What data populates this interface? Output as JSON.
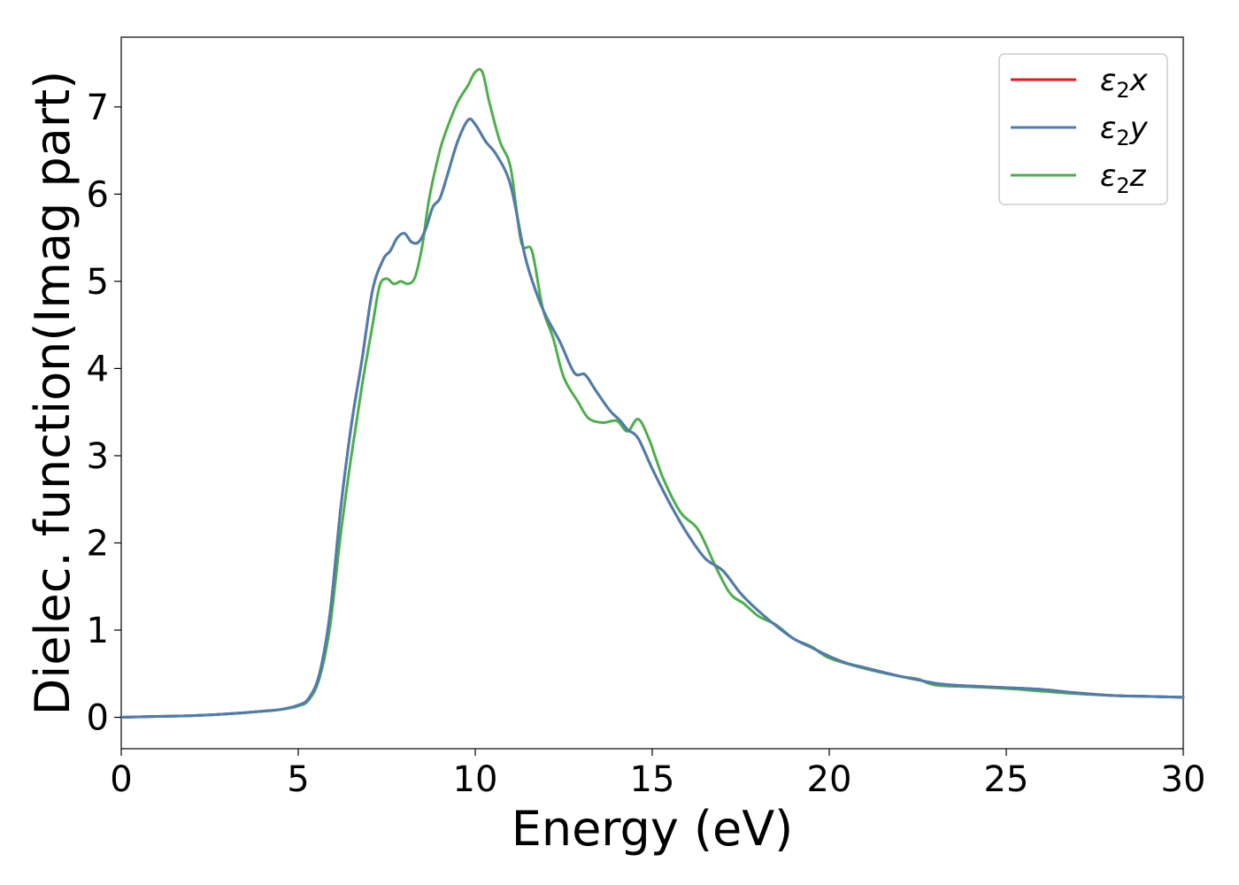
{
  "chart_data": {
    "type": "line",
    "title": "",
    "xlabel": "Energy (eV)",
    "ylabel": "Dielec. function(Imag part)",
    "xlim": [
      0,
      30
    ],
    "ylim": [
      -0.36,
      7.8
    ],
    "xticks": [
      "0",
      "5",
      "10",
      "15",
      "20",
      "25",
      "30"
    ],
    "yticks": [
      "0",
      "1",
      "2",
      "3",
      "4",
      "5",
      "6",
      "7"
    ],
    "grid": false,
    "legend_position": "top-right",
    "series": [
      {
        "name": "ε₂x",
        "legend_base": "ε",
        "legend_sub": "2",
        "legend_suffix": "x",
        "color": "#e41a1c",
        "x": [
          0,
          1,
          2,
          3,
          4,
          4.5,
          5,
          5.3,
          5.6,
          5.9,
          6.2,
          6.5,
          6.8,
          7.1,
          7.4,
          7.6,
          7.8,
          8.0,
          8.2,
          8.4,
          8.6,
          8.8,
          9.0,
          9.2,
          9.5,
          9.8,
          10.0,
          10.3,
          10.6,
          11.0,
          11.4,
          11.7,
          12.0,
          12.4,
          12.8,
          13.1,
          13.4,
          13.8,
          14.1,
          14.3,
          14.6,
          15.0,
          15.5,
          16.0,
          16.5,
          17.0,
          17.5,
          18.0,
          18.5,
          19.0,
          19.5,
          20.0,
          20.5,
          21.0,
          21.5,
          22.0,
          22.5,
          23.0,
          23.5,
          24.0,
          25.0,
          26.0,
          27.0,
          28.0,
          29.0,
          30.0
        ],
        "values": [
          0.0,
          0.01,
          0.02,
          0.04,
          0.07,
          0.09,
          0.14,
          0.22,
          0.5,
          1.2,
          2.4,
          3.35,
          4.1,
          4.9,
          5.25,
          5.35,
          5.5,
          5.55,
          5.45,
          5.45,
          5.6,
          5.85,
          5.95,
          6.2,
          6.6,
          6.85,
          6.8,
          6.6,
          6.45,
          6.1,
          5.3,
          4.9,
          4.6,
          4.3,
          3.95,
          3.93,
          3.75,
          3.52,
          3.4,
          3.3,
          3.2,
          2.85,
          2.45,
          2.1,
          1.82,
          1.68,
          1.42,
          1.22,
          1.05,
          0.9,
          0.8,
          0.7,
          0.62,
          0.57,
          0.52,
          0.47,
          0.43,
          0.39,
          0.37,
          0.36,
          0.34,
          0.32,
          0.28,
          0.25,
          0.24,
          0.23
        ]
      },
      {
        "name": "ε₂y",
        "legend_base": "ε",
        "legend_sub": "2",
        "legend_suffix": "y",
        "color": "#4a7fb0",
        "x": [
          0,
          1,
          2,
          3,
          4,
          4.5,
          5,
          5.3,
          5.6,
          5.9,
          6.2,
          6.5,
          6.8,
          7.1,
          7.4,
          7.6,
          7.8,
          8.0,
          8.2,
          8.4,
          8.6,
          8.8,
          9.0,
          9.2,
          9.5,
          9.8,
          10.0,
          10.3,
          10.6,
          11.0,
          11.4,
          11.7,
          12.0,
          12.4,
          12.8,
          13.1,
          13.4,
          13.8,
          14.1,
          14.3,
          14.6,
          15.0,
          15.5,
          16.0,
          16.5,
          17.0,
          17.5,
          18.0,
          18.5,
          19.0,
          19.5,
          20.0,
          20.5,
          21.0,
          21.5,
          22.0,
          22.5,
          23.0,
          23.5,
          24.0,
          25.0,
          26.0,
          27.0,
          28.0,
          29.0,
          30.0
        ],
        "values": [
          0.0,
          0.01,
          0.02,
          0.04,
          0.07,
          0.09,
          0.14,
          0.22,
          0.5,
          1.2,
          2.4,
          3.35,
          4.1,
          4.9,
          5.25,
          5.35,
          5.5,
          5.55,
          5.45,
          5.45,
          5.6,
          5.85,
          5.95,
          6.2,
          6.6,
          6.85,
          6.8,
          6.6,
          6.45,
          6.1,
          5.3,
          4.9,
          4.6,
          4.3,
          3.95,
          3.93,
          3.75,
          3.52,
          3.4,
          3.3,
          3.2,
          2.85,
          2.45,
          2.1,
          1.82,
          1.68,
          1.42,
          1.22,
          1.05,
          0.9,
          0.8,
          0.7,
          0.62,
          0.57,
          0.52,
          0.47,
          0.43,
          0.39,
          0.37,
          0.36,
          0.34,
          0.32,
          0.28,
          0.25,
          0.24,
          0.23
        ]
      },
      {
        "name": "ε₂z",
        "legend_base": "ε",
        "legend_sub": "2",
        "legend_suffix": "z",
        "color": "#4daf4a",
        "x": [
          0,
          1,
          2,
          3,
          4,
          4.5,
          5,
          5.3,
          5.6,
          5.9,
          6.2,
          6.5,
          6.8,
          7.1,
          7.3,
          7.5,
          7.7,
          7.9,
          8.1,
          8.3,
          8.5,
          8.7,
          9.0,
          9.2,
          9.5,
          9.8,
          10.0,
          10.2,
          10.4,
          10.7,
          11.0,
          11.3,
          11.6,
          11.9,
          12.2,
          12.5,
          12.9,
          13.2,
          13.6,
          14.0,
          14.3,
          14.6,
          14.9,
          15.3,
          15.8,
          16.3,
          16.8,
          17.2,
          17.6,
          18.0,
          18.5,
          19.0,
          19.5,
          20.0,
          21.0,
          22.0,
          22.5,
          23.0,
          24.0,
          25.0,
          26.0,
          27.0,
          28.0,
          29.0,
          30.0
        ],
        "values": [
          0.0,
          0.01,
          0.02,
          0.04,
          0.07,
          0.09,
          0.13,
          0.2,
          0.45,
          1.05,
          2.1,
          3.0,
          3.8,
          4.5,
          4.95,
          5.03,
          4.97,
          5.0,
          4.97,
          5.05,
          5.4,
          5.95,
          6.5,
          6.75,
          7.05,
          7.25,
          7.4,
          7.4,
          7.05,
          6.6,
          6.3,
          5.45,
          5.35,
          4.7,
          4.35,
          3.9,
          3.62,
          3.43,
          3.38,
          3.4,
          3.28,
          3.42,
          3.2,
          2.75,
          2.35,
          2.15,
          1.72,
          1.42,
          1.3,
          1.16,
          1.06,
          0.9,
          0.81,
          0.68,
          0.56,
          0.47,
          0.44,
          0.37,
          0.35,
          0.33,
          0.3,
          0.27,
          0.25,
          0.24,
          0.23
        ]
      }
    ]
  }
}
